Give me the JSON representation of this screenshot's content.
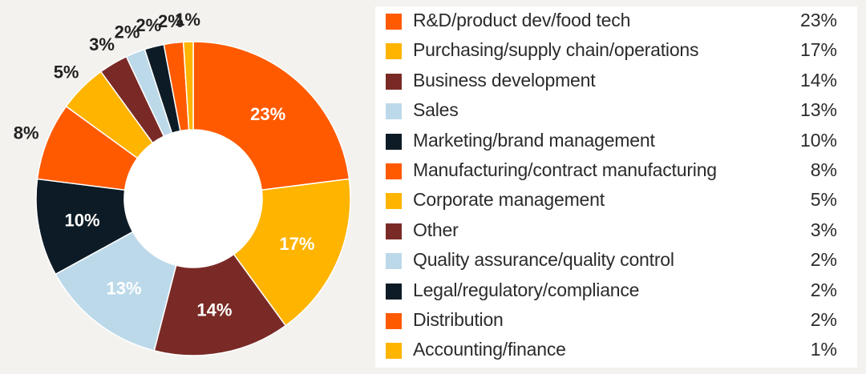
{
  "chart_data": {
    "type": "pie",
    "title": "",
    "categories": [
      "R&D/product dev/food tech",
      "Purchasing/supply chain/operations",
      "Business development",
      "Sales",
      "Marketing/brand management",
      "Manufacturing/contract manufacturing",
      "Corporate management",
      "Other",
      "Quality assurance/quality control",
      "Legal/regulatory/compliance",
      "Distribution",
      "Accounting/finance"
    ],
    "values": [
      23,
      17,
      14,
      13,
      10,
      8,
      5,
      3,
      2,
      2,
      2,
      1
    ],
    "value_labels": [
      "23%",
      "17%",
      "14%",
      "13%",
      "10%",
      "8%",
      "5%",
      "3%",
      "2%",
      "2%",
      "2%",
      "1%"
    ],
    "colors": [
      "#ff5a00",
      "#ffb400",
      "#7a2a26",
      "#bcd9ea",
      "#0d1b26",
      "#ff5a00",
      "#ffb400",
      "#7a2a26",
      "#bcd9ea",
      "#0d1b26",
      "#ff5a00",
      "#ffb400"
    ],
    "label_colors": [
      "#ffffff",
      "#ffffff",
      "#ffffff",
      "#ffffff",
      "#ffffff",
      "#222222",
      "#222222",
      "#222222",
      "#222222",
      "#222222",
      "#222222",
      "#222222"
    ],
    "donut": true,
    "legend": "right"
  }
}
